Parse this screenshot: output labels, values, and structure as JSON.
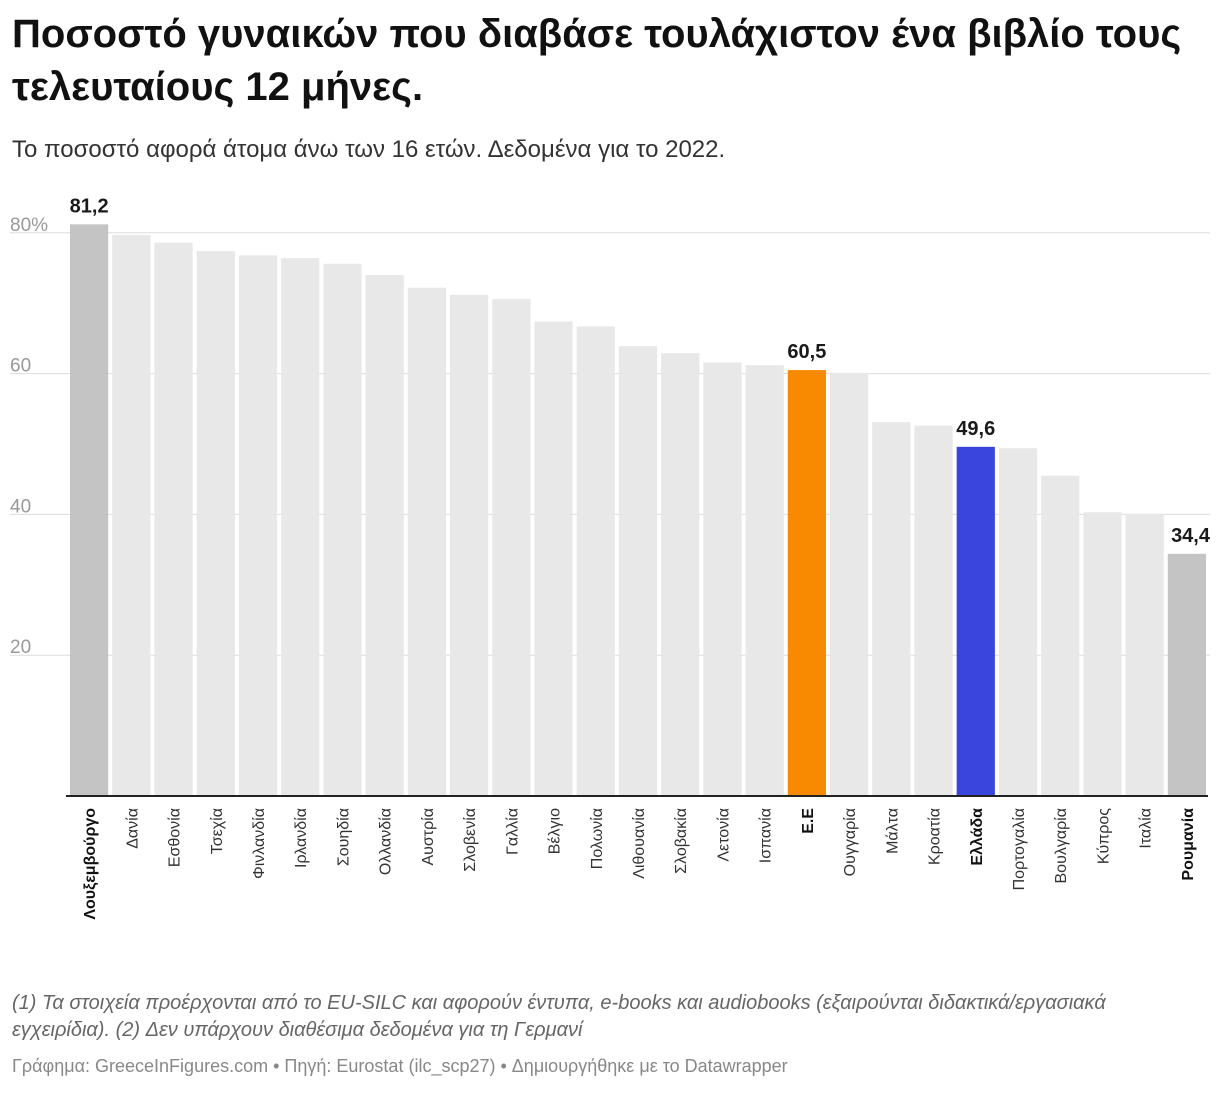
{
  "header": {
    "title": "Ποσοστό γυναικών που διαβάσε τουλάχιστον ένα βιβλίο τους τελευταίους 12 μήνες.",
    "subtitle": "Το ποσοστό αφορά άτομα άνω των 16 ετών. Δεδομένα για το 2022."
  },
  "footer": {
    "notes": "(1) Τα στοιχεία προέρχονται από το EU-SILC και αφορούν έντυπα, e-books και audiobooks (εξαιρούνται διδακτικά/εργασιακά εγχειρίδια). (2) Δεν υπάρχουν διαθέσιμα δεδομένα για τη Γερμανί",
    "byline": "Γράφημα: GreeceInFigures.com • Πηγή: Eurostat (ilc_scp27) • Δημιουργήθηκε με το Datawrapper"
  },
  "colors": {
    "default": "#e8e8e8",
    "extreme": "#c4c4c4",
    "eu": "#f78a00",
    "greece": "#3a45dd",
    "grid": "#dddddd",
    "baseline": "#222222"
  },
  "chart_data": {
    "type": "bar",
    "title": "Ποσοστό γυναικών που διαβάσε τουλάχιστον ένα βιβλίο τους τελευταίους 12 μήνες.",
    "ylim": [
      0,
      80
    ],
    "yticks": [
      {
        "value": 20,
        "label": "20"
      },
      {
        "value": 40,
        "label": "40"
      },
      {
        "value": 60,
        "label": "60"
      },
      {
        "value": 80,
        "label": "80%"
      }
    ],
    "categories": [
      "Λουξεμβούργο",
      "Δανία",
      "Εσθονία",
      "Τσεχία",
      "Φινλανδία",
      "Ιρλανδία",
      "Σουηδία",
      "Ολλανδία",
      "Αυστρία",
      "Σλοβενία",
      "Γαλλία",
      "Βέλγιο",
      "Πολωνία",
      "Λιθουανία",
      "Σλοβακία",
      "Λετονία",
      "Ισπανία",
      "Ε.Ε",
      "Ουγγαρία",
      "Μάλτα",
      "Κροατία",
      "Ελλάδα",
      "Πορτογαλία",
      "Βουλγαρία",
      "Κύπρος",
      "Ιταλία",
      "Ρουμανία"
    ],
    "values": [
      81.2,
      79.7,
      78.6,
      77.4,
      76.8,
      76.4,
      75.6,
      74.0,
      72.2,
      71.2,
      70.6,
      67.4,
      66.7,
      63.9,
      62.9,
      61.6,
      61.2,
      60.5,
      60.1,
      53.1,
      52.6,
      49.6,
      49.4,
      45.5,
      40.3,
      40.1,
      34.4
    ],
    "highlights": {
      "Λουξεμβούργο": {
        "color": "extreme",
        "label": "81,2",
        "bold": true
      },
      "Ε.Ε": {
        "color": "eu",
        "label": "60,5",
        "bold": true
      },
      "Ελλάδα": {
        "color": "greece",
        "label": "49,6",
        "bold": true
      },
      "Ρουμανία": {
        "color": "extreme",
        "label": "34,4",
        "bold": true
      }
    }
  }
}
